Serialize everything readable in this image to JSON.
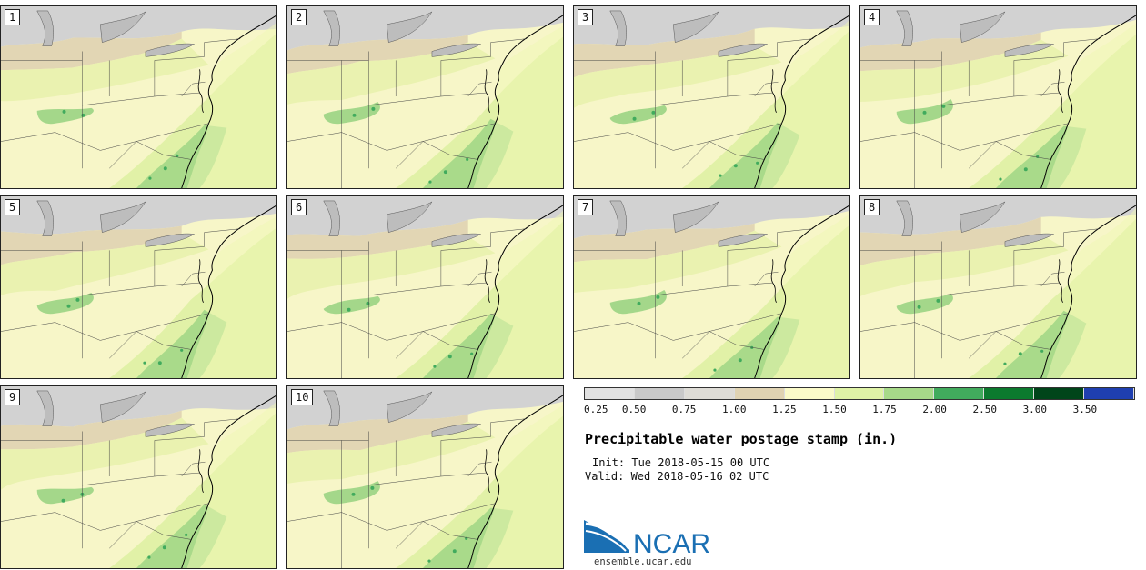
{
  "panels": [
    {
      "label": "1"
    },
    {
      "label": "2"
    },
    {
      "label": "3"
    },
    {
      "label": "4"
    },
    {
      "label": "5"
    },
    {
      "label": "6"
    },
    {
      "label": "7"
    },
    {
      "label": "8"
    },
    {
      "label": "9"
    },
    {
      "label": "10"
    }
  ],
  "colorbar": {
    "colors": [
      "#e1e1e1",
      "#c9c9c9",
      "#dedcd6",
      "#e0d3b2",
      "#fafac8",
      "#dff3a6",
      "#a7da89",
      "#41ab5d",
      "#0b7a2e",
      "#00451a",
      "#1f3fb0"
    ],
    "ticks": [
      "0.25",
      "0.50",
      "0.75",
      "1.00",
      "1.25",
      "1.50",
      "1.75",
      "2.00",
      "2.50",
      "3.00",
      "3.50"
    ]
  },
  "title": "Precipitable water postage stamp (in.)",
  "init": "Init: Tue 2018-05-15 00 UTC",
  "valid": "Valid: Wed 2018-05-16 02 UTC",
  "logo": {
    "text": "NCAR",
    "url": "ensemble.ucar.edu",
    "color": "#1a6fb3"
  }
}
